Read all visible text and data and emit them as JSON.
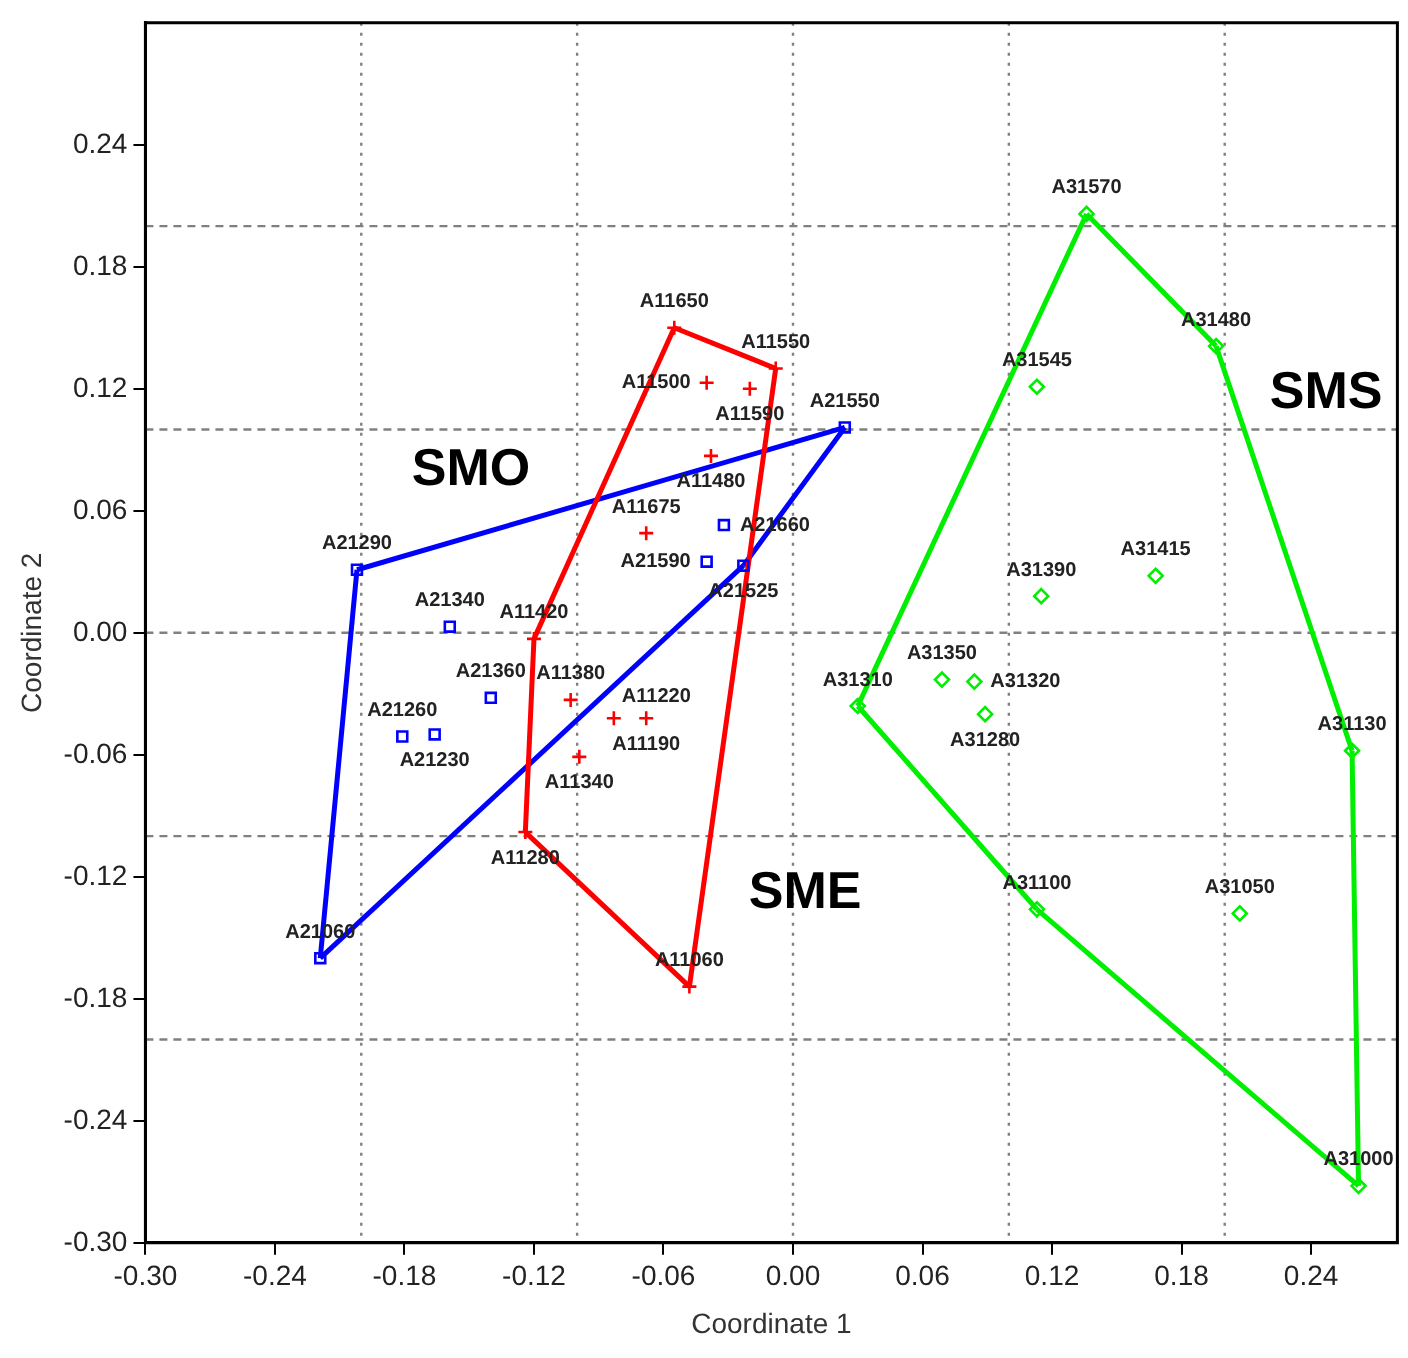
{
  "chart_data": {
    "type": "scatter",
    "xlabel": "Coordinate 1",
    "ylabel": "Coordinate 2",
    "xlim": [
      -0.3,
      0.28
    ],
    "ylim": [
      -0.3,
      0.3
    ],
    "xticks": [
      {
        "value": -0.3,
        "label": "-0.30"
      },
      {
        "value": -0.24,
        "label": "-0.24"
      },
      {
        "value": -0.18,
        "label": "-0.18"
      },
      {
        "value": -0.12,
        "label": "-0.12"
      },
      {
        "value": -0.06,
        "label": "-0.06"
      },
      {
        "value": 0,
        "label": "0.00"
      },
      {
        "value": 0.06,
        "label": "0.06"
      },
      {
        "value": 0.12,
        "label": "0.12"
      },
      {
        "value": 0.18,
        "label": "0.18"
      },
      {
        "value": 0.24,
        "label": "0.24"
      }
    ],
    "yticks": [
      {
        "value": -0.3,
        "label": "-0.30"
      },
      {
        "value": -0.24,
        "label": "-0.24"
      },
      {
        "value": -0.18,
        "label": "-0.18"
      },
      {
        "value": -0.12,
        "label": "-0.12"
      },
      {
        "value": -0.06,
        "label": "-0.06"
      },
      {
        "value": 0,
        "label": "0.00"
      },
      {
        "value": 0.06,
        "label": "0.06"
      },
      {
        "value": 0.12,
        "label": "0.12"
      },
      {
        "value": 0.18,
        "label": "0.18"
      },
      {
        "value": 0.24,
        "label": "0.24"
      }
    ],
    "grid": false,
    "legend": false,
    "ref_lines": [
      {
        "axis": "x",
        "value": -0.2,
        "color": "#808080",
        "line_style": "dotted"
      },
      {
        "axis": "x",
        "value": -0.1,
        "color": "#808080",
        "line_style": "dotted"
      },
      {
        "axis": "x",
        "value": 0,
        "color": "#808080",
        "line_style": "dotted"
      },
      {
        "axis": "x",
        "value": 0.1,
        "color": "#808080",
        "line_style": "dotted"
      },
      {
        "axis": "x",
        "value": 0.2,
        "color": "#808080",
        "line_style": "dotted"
      },
      {
        "axis": "y",
        "value": 0.2,
        "color": "#808080",
        "line_style": "dashed"
      },
      {
        "axis": "y",
        "value": 0.1,
        "color": "#808080",
        "line_style": "dashed"
      },
      {
        "axis": "y",
        "value": 0,
        "color": "#808080",
        "line_style": "dashed"
      },
      {
        "axis": "y",
        "value": -0.1,
        "color": "#808080",
        "line_style": "dashed"
      },
      {
        "axis": "y",
        "value": -0.2,
        "color": "#808080",
        "line_style": "dashed"
      }
    ],
    "annotations": [
      "SMO",
      "SME",
      "SMS"
    ],
    "series": [
      {
        "type": "line",
        "color": "#ff0000",
        "marker": "none",
        "x": [
          -0.055,
          -0.008
        ],
        "values": [
          0.15,
          0.13
        ]
      },
      {
        "type": "line",
        "color": "#ff0000",
        "marker": "none",
        "x": [
          -0.048,
          -0.008
        ],
        "values": [
          -0.174,
          0.13
        ]
      },
      {
        "type": "line",
        "color": "#ff0000",
        "marker": "none",
        "x": [
          -0.124,
          -0.048
        ],
        "values": [
          -0.098,
          -0.174
        ]
      },
      {
        "type": "line",
        "color": "#ff0000",
        "marker": "none",
        "x": [
          -0.124,
          -0.12
        ],
        "values": [
          -0.098,
          -0.003
        ]
      },
      {
        "type": "line",
        "color": "#ff0000",
        "marker": "none",
        "x": [
          -0.12,
          -0.055
        ],
        "values": [
          -0.003,
          0.15
        ]
      },
      {
        "type": "line",
        "color": "#0000ff",
        "marker": "none",
        "x": [
          -0.202,
          0.024
        ],
        "values": [
          0.031,
          0.101
        ]
      },
      {
        "type": "line",
        "color": "#0000ff",
        "marker": "none",
        "x": [
          -0.219,
          -0.202
        ],
        "values": [
          -0.16,
          0.031
        ]
      },
      {
        "type": "line",
        "color": "#0000ff",
        "marker": "none",
        "x": [
          -0.219,
          -0.023
        ],
        "values": [
          -0.16,
          0.033
        ]
      },
      {
        "type": "line",
        "color": "#0000ff",
        "marker": "none",
        "x": [
          -0.023,
          0.024
        ],
        "values": [
          0.033,
          0.101
        ]
      },
      {
        "type": "line",
        "color": "#00ee00",
        "marker": "none",
        "x": [
          0.03,
          0.136
        ],
        "values": [
          -0.036,
          0.206
        ]
      },
      {
        "type": "line",
        "color": "#00ee00",
        "marker": "none",
        "x": [
          0.136,
          0.196
        ],
        "values": [
          0.206,
          0.141
        ]
      },
      {
        "type": "line",
        "color": "#00ee00",
        "marker": "none",
        "x": [
          0.196,
          0.259
        ],
        "values": [
          0.141,
          -0.058
        ]
      },
      {
        "type": "line",
        "color": "#00ee00",
        "marker": "none",
        "x": [
          0.259,
          0.262
        ],
        "values": [
          -0.058,
          -0.272
        ]
      },
      {
        "type": "line",
        "color": "#00ee00",
        "marker": "none",
        "x": [
          0.113,
          0.262
        ],
        "values": [
          -0.136,
          -0.272
        ]
      },
      {
        "type": "line",
        "color": "#00ee00",
        "marker": "none",
        "x": [
          0.03,
          0.113
        ],
        "values": [
          -0.036,
          -0.136
        ]
      },
      {
        "type": "scatter",
        "color": "#ff0000",
        "marker": "cross",
        "x": [
          -0.055,
          -0.008,
          -0.04,
          -0.02,
          -0.038,
          -0.068,
          -0.12,
          -0.103,
          -0.083,
          -0.068,
          -0.099,
          -0.124,
          -0.048
        ],
        "values": [
          0.15,
          0.13,
          0.123,
          0.12,
          0.087,
          0.049,
          -0.003,
          -0.033,
          -0.042,
          -0.042,
          -0.061,
          -0.098,
          -0.174
        ],
        "value_labels": [
          "A11650",
          "A11550",
          "A11500",
          "A11590",
          "A11480",
          "A11675",
          "A11420",
          "A11380",
          "A11220",
          "A11190",
          "A11340",
          "A11280",
          "A11060"
        ]
      },
      {
        "type": "scatter",
        "color": "#0000ff",
        "marker": "square",
        "x": [
          0.024,
          -0.202,
          -0.032,
          -0.04,
          -0.023,
          -0.159,
          -0.14,
          -0.181,
          -0.166,
          -0.219
        ],
        "values": [
          0.101,
          0.031,
          0.053,
          0.035,
          0.033,
          0.003,
          -0.032,
          -0.051,
          -0.05,
          -0.16
        ],
        "value_labels": [
          "A21550",
          "A21290",
          "A21660",
          "A21590",
          "A21525",
          "A21340",
          "A21360",
          "A21260",
          "A21230",
          "A21060"
        ]
      },
      {
        "type": "scatter",
        "color": "#00ee00",
        "marker": "diamond",
        "x": [
          0.136,
          0.196,
          0.113,
          0.115,
          0.168,
          0.069,
          0.084,
          0.03,
          0.089,
          0.259,
          0.113,
          0.207,
          0.262
        ],
        "values": [
          0.206,
          0.141,
          0.121,
          0.018,
          0.028,
          -0.023,
          -0.024,
          -0.036,
          -0.04,
          -0.058,
          -0.136,
          -0.138,
          -0.272
        ],
        "value_labels": [
          "A31570",
          "A31480",
          "A31545",
          "A31390",
          "A31415",
          "A31350",
          "A31320",
          "A31310",
          "A31280",
          "A31130",
          "A31100",
          "A31050",
          "A31000"
        ]
      }
    ]
  }
}
